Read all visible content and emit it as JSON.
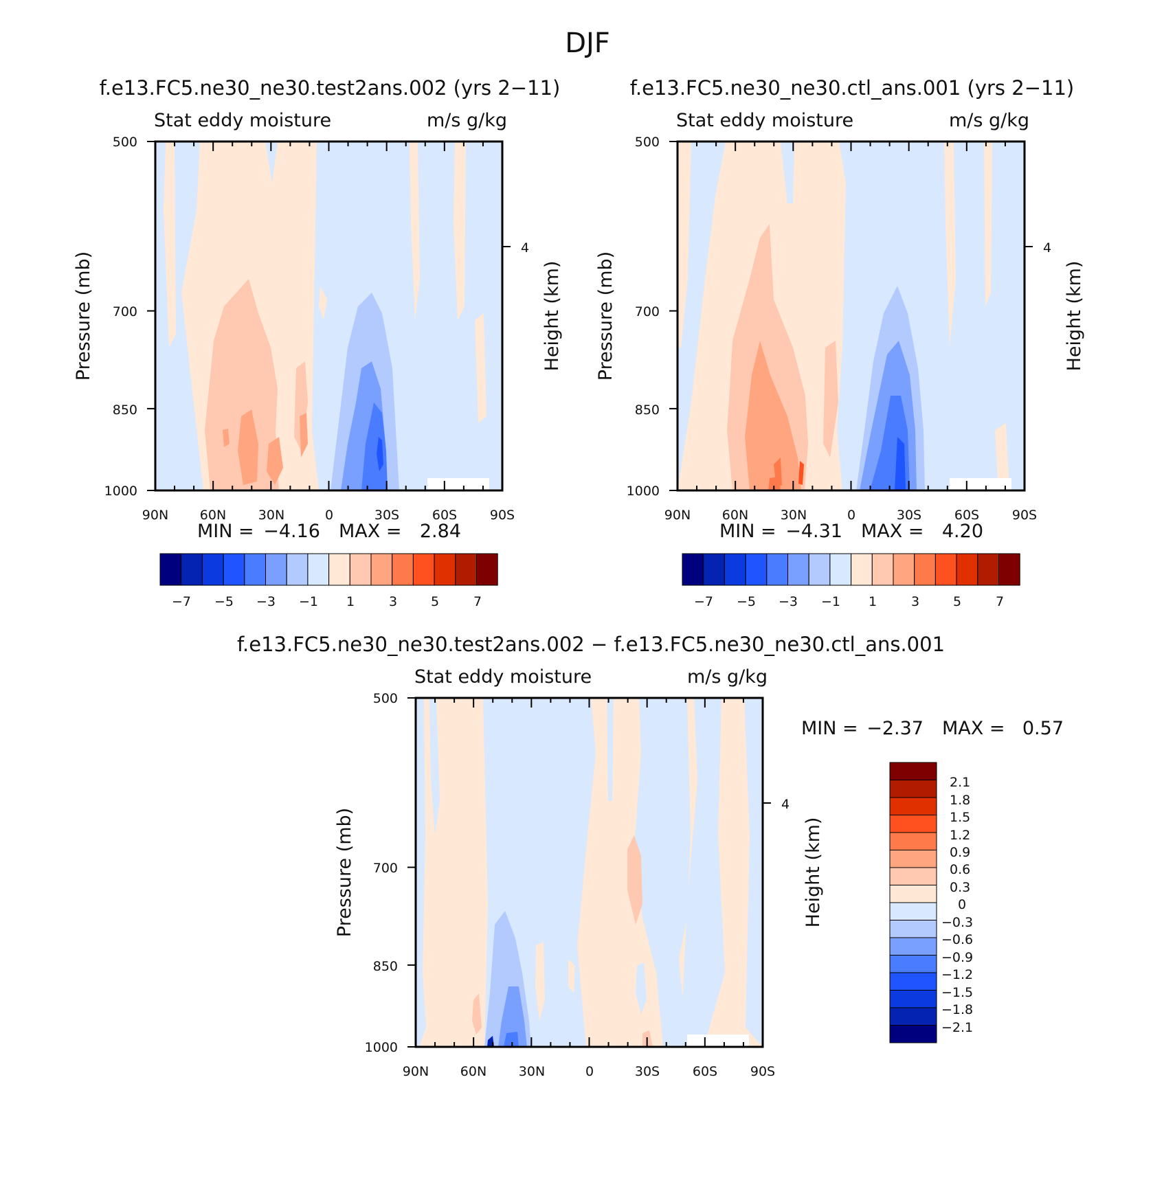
{
  "figure_title": "DJF",
  "colors": {
    "div16": [
      "#00007f",
      "#0423b0",
      "#0a3ae0",
      "#1f55ff",
      "#4a7cff",
      "#7aa0ff",
      "#b3caff",
      "#d8e8ff",
      "#ffe8d6",
      "#ffc8b0",
      "#ffa680",
      "#ff7a4a",
      "#ff5020",
      "#e03000",
      "#b01c00",
      "#7f0000"
    ],
    "div14": [
      "#00007f",
      "#0423b0",
      "#0a3ae0",
      "#1f55ff",
      "#4a7cff",
      "#7aa0ff",
      "#b3caff",
      "#d8e8ff",
      "#ffe8d6",
      "#ffc8b0",
      "#ff9060",
      "#ff5a25",
      "#d02a00",
      "#7f0000"
    ]
  },
  "panels": [
    {
      "title": "f.e13.FC5.ne30_ne30.test2ans.002 (yrs 2−11)",
      "left_label": "Stat eddy moisture",
      "right_label": "m/s g/kg",
      "ylabel": "Pressure (mb)",
      "ylabel_right": "Height (km)",
      "yticks": [
        "500",
        "700",
        "850",
        "1000"
      ],
      "height_tick": "4",
      "xticks": [
        "90N",
        "60N",
        "30N",
        "0",
        "30S",
        "60S",
        "90S"
      ],
      "min_label": "MIN =",
      "min_value": "−4.16",
      "max_label": "MAX =",
      "max_value": "2.84",
      "cbar_ticks": [
        "−7",
        "−5",
        "−3",
        "−1",
        "1",
        "3",
        "5",
        "7"
      ]
    },
    {
      "title": "f.e13.FC5.ne30_ne30.ctl_ans.001 (yrs 2−11)",
      "left_label": "Stat eddy moisture",
      "right_label": "m/s g/kg",
      "ylabel": "Pressure (mb)",
      "ylabel_right": "Height (km)",
      "yticks": [
        "500",
        "700",
        "850",
        "1000"
      ],
      "height_tick": "4",
      "xticks": [
        "90N",
        "60N",
        "30N",
        "0",
        "30S",
        "60S",
        "90S"
      ],
      "min_label": "MIN =",
      "min_value": "−4.31",
      "max_label": "MAX =",
      "max_value": "4.20",
      "cbar_ticks": [
        "−7",
        "−5",
        "−3",
        "−1",
        "1",
        "3",
        "5",
        "7"
      ]
    },
    {
      "title": "f.e13.FC5.ne30_ne30.test2ans.002 − f.e13.FC5.ne30_ne30.ctl_ans.001",
      "left_label": "Stat eddy moisture",
      "right_label": "m/s g/kg",
      "ylabel": "Pressure (mb)",
      "ylabel_right": "Height (km)",
      "yticks": [
        "500",
        "700",
        "850",
        "1000"
      ],
      "height_tick": "4",
      "xticks": [
        "90N",
        "60N",
        "30N",
        "0",
        "30S",
        "60S",
        "90S"
      ],
      "min_label": "MIN =",
      "min_value": "−2.37",
      "max_label": "MAX =",
      "max_value": "0.57",
      "cbar_ticks": [
        "2.1",
        "1.8",
        "1.5",
        "1.2",
        "0.9",
        "0.6",
        "0.3",
        "0",
        "−0.3",
        "−0.6",
        "−0.9",
        "−1.2",
        "−1.5",
        "−1.8",
        "−2.1"
      ]
    }
  ],
  "chart_data": [
    {
      "type": "heatmap",
      "title": "f.e13.FC5.ne30_ne30.test2ans.002 (yrs 2−11)",
      "xlabel": "",
      "ylabel": "Pressure (mb)",
      "x_ticks": [
        "90N",
        "60N",
        "30N",
        "0",
        "30S",
        "60S",
        "90S"
      ],
      "xlim": [
        90,
        -90
      ],
      "ylim": [
        1000,
        500
      ],
      "y_scale": "log-pressure",
      "value_range": [
        -4.16,
        2.84
      ],
      "contour_levels": [
        -7,
        -6,
        -5,
        -4,
        -3,
        -2,
        -1,
        0,
        1,
        2,
        3,
        4,
        5,
        6,
        7
      ]
    },
    {
      "type": "heatmap",
      "title": "f.e13.FC5.ne30_ne30.ctl_ans.001 (yrs 2−11)",
      "xlabel": "",
      "ylabel": "Pressure (mb)",
      "x_ticks": [
        "90N",
        "60N",
        "30N",
        "0",
        "30S",
        "60S",
        "90S"
      ],
      "xlim": [
        90,
        -90
      ],
      "ylim": [
        1000,
        500
      ],
      "y_scale": "log-pressure",
      "value_range": [
        -4.31,
        4.2
      ],
      "contour_levels": [
        -7,
        -6,
        -5,
        -4,
        -3,
        -2,
        -1,
        0,
        1,
        2,
        3,
        4,
        5,
        6,
        7
      ]
    },
    {
      "type": "heatmap",
      "title": "f.e13.FC5.ne30_ne30.test2ans.002 − f.e13.FC5.ne30_ne30.ctl_ans.001",
      "xlabel": "",
      "ylabel": "Pressure (mb)",
      "x_ticks": [
        "90N",
        "60N",
        "30N",
        "0",
        "30S",
        "60S",
        "90S"
      ],
      "xlim": [
        90,
        -90
      ],
      "ylim": [
        1000,
        500
      ],
      "y_scale": "log-pressure",
      "value_range": [
        -2.37,
        0.57
      ],
      "contour_levels": [
        -2.1,
        -1.8,
        -1.5,
        -1.2,
        -0.9,
        -0.6,
        -0.3,
        0,
        0.3,
        0.6,
        0.9,
        1.2,
        1.5,
        1.8,
        2.1
      ]
    }
  ]
}
